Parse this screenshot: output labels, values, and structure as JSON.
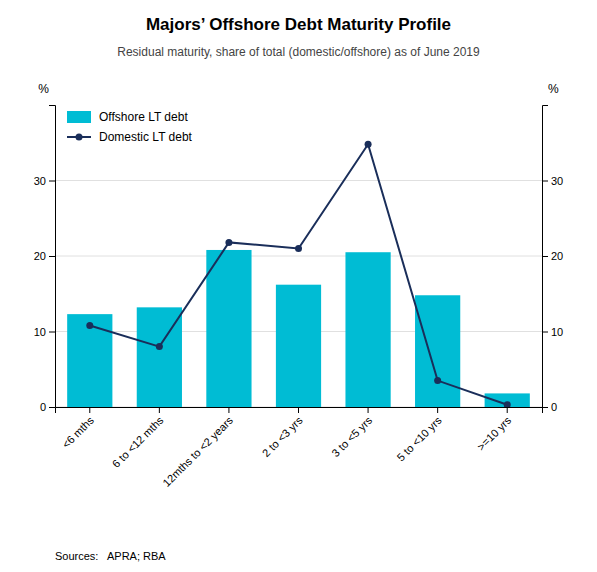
{
  "chart_data": {
    "type": "bar",
    "title": "Majors’ Offshore Debt Maturity Profile",
    "subtitle": "Residual maturity, share of total (domestic/offshore) as of June 2019",
    "source": "Sources:   APRA; RBA",
    "ylabel": "%",
    "y2label": "%",
    "categories": [
      "<6 mths",
      "6 to <12 mths",
      "12mths to <2 years",
      "2 to <3 yrs",
      "3 to <5 yrs",
      "5 to <10 yrs",
      ">=10 yrs"
    ],
    "series": [
      {
        "name": "Offshore LT debt",
        "type": "bar",
        "color": "#00BCD4",
        "values": [
          12.3,
          13.2,
          20.8,
          16.2,
          20.5,
          14.8,
          1.8
        ]
      },
      {
        "name": "Domestic LT debt",
        "type": "line",
        "axis": "y2",
        "color": "#1a2e5a",
        "marker": "circle",
        "values": [
          10.8,
          8.0,
          21.8,
          21.0,
          34.8,
          3.5,
          0.3
        ]
      }
    ],
    "ylim": [
      0,
      40
    ],
    "yticks": [
      0,
      10,
      20,
      30
    ],
    "y2lim": [
      0,
      40
    ],
    "y2ticks": [
      0,
      10,
      20,
      30
    ],
    "grid": true,
    "legend": "upper left"
  }
}
